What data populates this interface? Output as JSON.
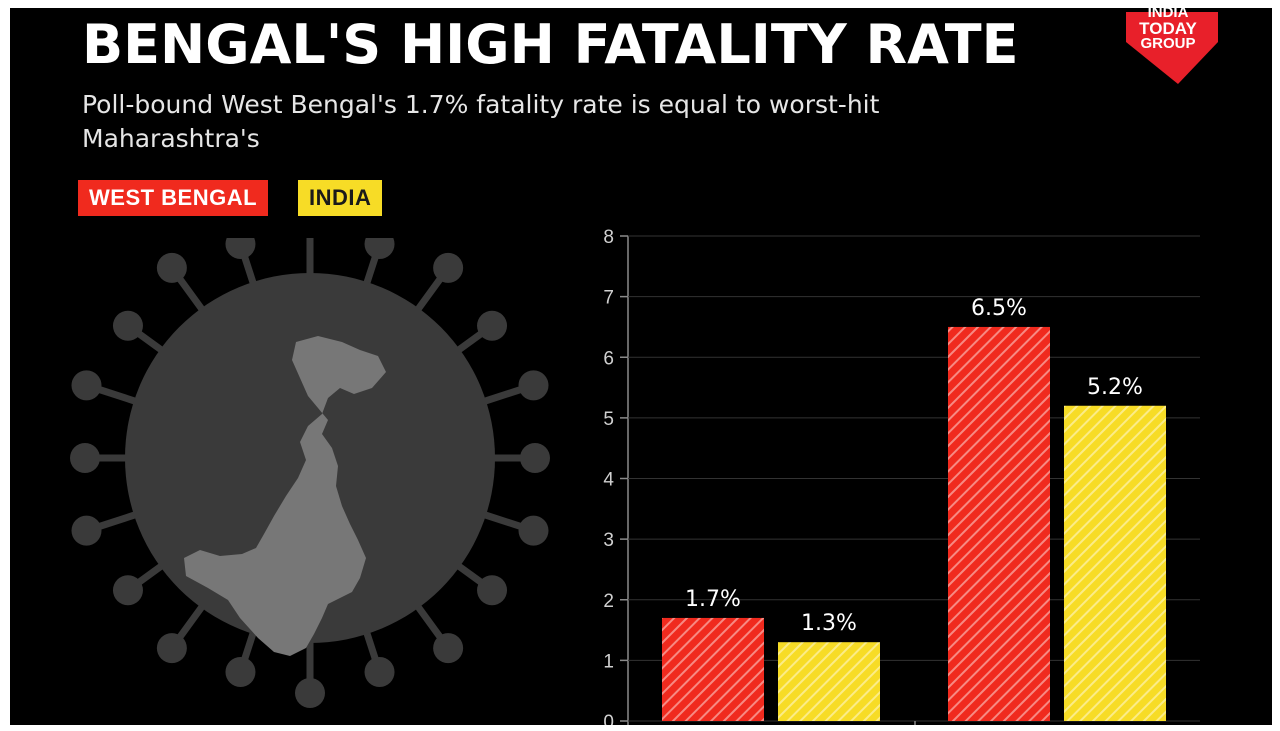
{
  "header": {
    "title": "BENGAL'S HIGH FATALITY RATE",
    "subtitle": "Poll-bound West Bengal's 1.7% fatality rate is equal to worst-hit Maharashtra's"
  },
  "logo": {
    "text_lines": [
      "INDIA",
      "TODAY",
      "GROUP"
    ]
  },
  "legend": [
    {
      "label": "WEST BENGAL",
      "color": "#f02a1e"
    },
    {
      "label": "INDIA",
      "color": "#f7dc26"
    }
  ],
  "chart_data": {
    "type": "bar",
    "categories": [
      "",
      ""
    ],
    "series": [
      {
        "name": "WEST BENGAL",
        "color": "#f02a1e",
        "values": [
          1.7,
          6.5
        ],
        "labels": [
          "1.7%",
          "6.5%"
        ]
      },
      {
        "name": "INDIA",
        "color": "#f7dc26",
        "values": [
          1.3,
          5.2
        ],
        "labels": [
          "1.3%",
          "5.2%"
        ]
      }
    ],
    "ylim": [
      0,
      8
    ],
    "yticks": [
      "0",
      "1",
      "2",
      "3",
      "4",
      "5",
      "6",
      "7",
      "8"
    ],
    "grid": true,
    "legend_position": "top-left",
    "bar_pattern": "diagonal-stripes"
  },
  "colors": {
    "background": "#000000",
    "gridline": "#333333",
    "virus": "#3a3a3a",
    "map": "#777777"
  }
}
